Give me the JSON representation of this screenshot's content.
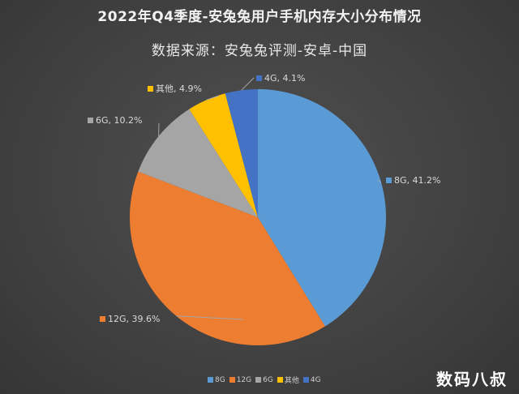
{
  "chart_data": {
    "type": "pie",
    "title": "2022年Q4季度-安兔兔用户手机内存大小分布情况",
    "subtitle": "数据来源：安兔兔评测-安卓-中国",
    "categories": [
      "8G",
      "12G",
      "6G",
      "其他",
      "4G"
    ],
    "values": [
      41.2,
      39.6,
      10.2,
      4.9,
      4.1
    ],
    "unit": "%",
    "colors": [
      "#5b9bd5",
      "#ed7d31",
      "#a5a5a5",
      "#ffc000",
      "#4472c4"
    ],
    "data_labels": [
      "8G, 41.2%",
      "12G, 39.6%",
      "6G, 10.2%",
      "其他, 4.9%",
      "4G, 4.1%"
    ],
    "legend_position": "bottom",
    "start_angle": "top, clockwise"
  },
  "legend": {
    "items": [
      {
        "label": "8G",
        "color": "#5b9bd5"
      },
      {
        "label": "12G",
        "color": "#ed7d31"
      },
      {
        "label": "6G",
        "color": "#a5a5a5"
      },
      {
        "label": "其他",
        "color": "#ffc000"
      },
      {
        "label": "4G",
        "color": "#4472c4"
      }
    ]
  },
  "watermark": "数码八叔"
}
